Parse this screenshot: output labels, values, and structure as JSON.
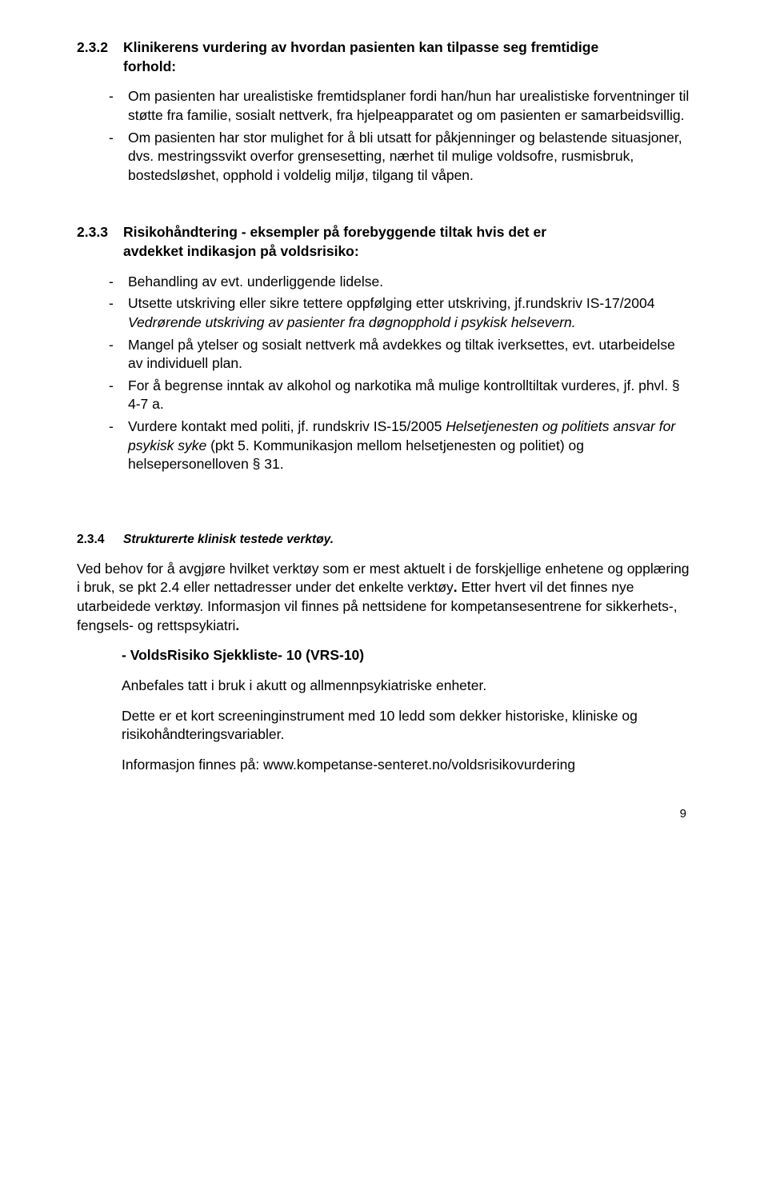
{
  "section_232": {
    "number": "2.3.2",
    "title_line1": "Klinikerens vurdering av hvordan pasienten kan tilpasse seg fremtidige",
    "title_line2": "forhold:",
    "bullets": [
      "Om pasienten har urealistiske fremtidsplaner fordi han/hun har urealistiske forventninger til støtte fra familie, sosialt nettverk, fra hjelpeapparatet og om pasienten er samarbeidsvillig.",
      "Om pasienten har stor mulighet for å bli utsatt for påkjenninger og belastende situasjoner, dvs. mestringssvikt overfor grensesetting, nærhet til mulige voldsofre, rusmisbruk, bostedsløshet, opphold i voldelig miljø, tilgang til våpen."
    ]
  },
  "section_233": {
    "number": "2.3.3",
    "title_line1": "Risikohåndtering - eksempler på forebyggende tiltak hvis det er",
    "title_line2": "avdekket indikasjon på voldsrisiko:",
    "bullets": [
      {
        "text": "Behandling av evt. underliggende lidelse."
      },
      {
        "pre": "Utsette utskriving eller sikre tettere oppfølging etter utskriving, jf.rundskriv IS-17/2004 ",
        "em": "Vedrørende utskriving av pasienter fra døgnopphold i psykisk helsevern.",
        "post": ""
      },
      {
        "text": "Mangel på ytelser og sosialt nettverk må avdekkes og tiltak iverksettes, evt. utarbeidelse av individuell plan."
      },
      {
        "text": "For å begrense inntak av alkohol og narkotika må mulige kontrolltiltak vurderes, jf. phvl. § 4-7 a."
      },
      {
        "pre": "Vurdere kontakt med politi, jf. rundskriv IS-15/2005 ",
        "em": "Helsetjenesten og politiets ansvar for psykisk syke",
        "post": " (pkt 5. Kommunikasjon mellom helsetjenesten og politiet) og helsepersonelloven § 31."
      }
    ]
  },
  "section_234": {
    "number": "2.3.4",
    "title": "Strukturerte klinisk testede verktøy.",
    "para": {
      "pre": "Ved behov for å avgjøre hvilket verktøy som er mest aktuelt i de forskjellige enhetene og opplæring i bruk, se pkt 2.4 eller nettadresser under det enkelte verktøy",
      "bold1": ".",
      "mid": " Etter hvert vil det finnes nye utarbeidede verktøy. Informasjon vil finnes på nettsidene for kompetansesentrene for sikkerhets-, fengsels- og rettspsykiatri",
      "bold2": "."
    },
    "sub_title": "- VoldsRisiko Sjekkliste- 10 (VRS-10)",
    "p1": "Anbefales tatt i bruk i akutt og allmennpsykiatriske enheter.",
    "p2": "Dette er et kort screeninginstrument med 10 ledd som dekker historiske, kliniske og risikohåndteringsvariabler.",
    "p3": "Informasjon finnes på: www.kompetanse-senteret.no/voldsrisikovurdering"
  },
  "page_number": "9"
}
